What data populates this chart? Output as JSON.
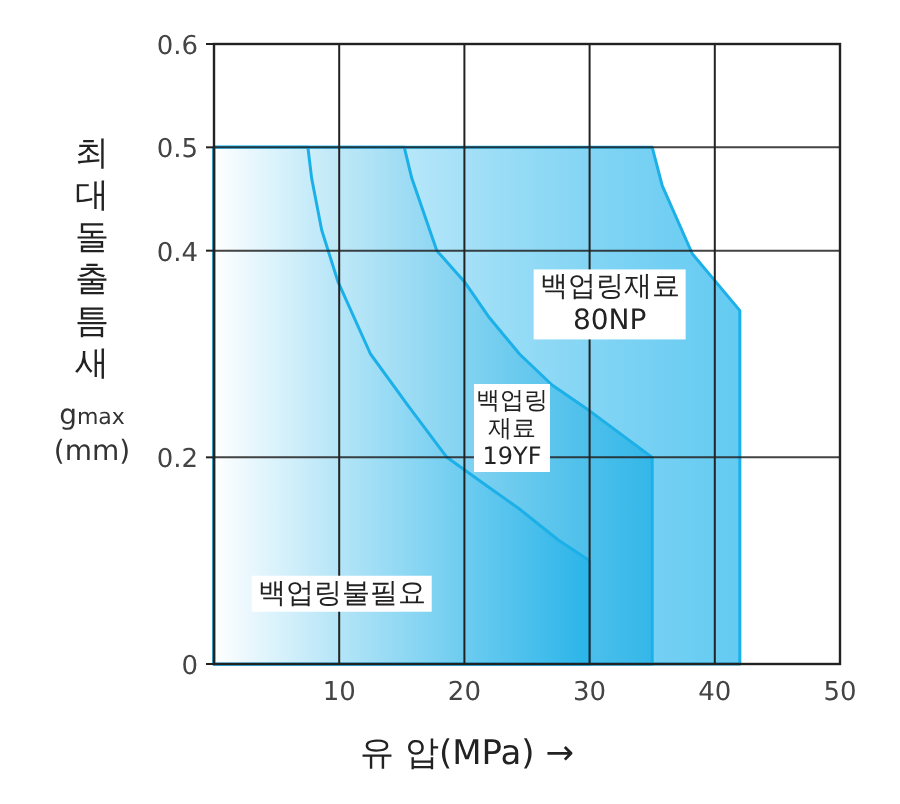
{
  "chart_data": {
    "type": "area",
    "xlabel": "유 압(MPa) →",
    "ylabel": "최대돌출틈새 g$_{max}$ (mm)",
    "xlim": [
      0,
      50
    ],
    "ylim": [
      0,
      0.6
    ],
    "xticks": [
      10,
      20,
      30,
      40,
      50
    ],
    "yticks": [
      0,
      0.2,
      0.4,
      0.5,
      0.6
    ],
    "grid": true,
    "series": [
      {
        "color": "#1cb0e8",
        "x": [
          0,
          7.5,
          7.8,
          8.6,
          9.9,
          12.5,
          15.5,
          18.6,
          21.5,
          24.4,
          27.5,
          30,
          30
        ],
        "values": [
          0.5,
          0.5,
          0.47,
          0.42,
          0.37,
          0.3,
          0.25,
          0.2,
          0.175,
          0.15,
          0.12,
          0.1,
          0
        ]
      },
      {
        "color": "#18ace4",
        "x": [
          0,
          15.2,
          15.8,
          17.8,
          20,
          22,
          24.4,
          27,
          30,
          35,
          35
        ],
        "values": [
          0.5,
          0.5,
          0.47,
          0.4,
          0.37,
          0.335,
          0.3,
          0.27,
          0.245,
          0.2,
          0
        ]
      },
      {
        "color": "#22b4ec",
        "x": [
          0,
          35,
          35.8,
          38.2,
          40,
          42,
          42
        ],
        "values": [
          0.5,
          0.5,
          0.463,
          0.397,
          0.371,
          0.342,
          0
        ]
      }
    ],
    "annotations": [
      "백업링불필요",
      "백업링\n재료\n19YF",
      "백업링재료\n80NP"
    ]
  }
}
